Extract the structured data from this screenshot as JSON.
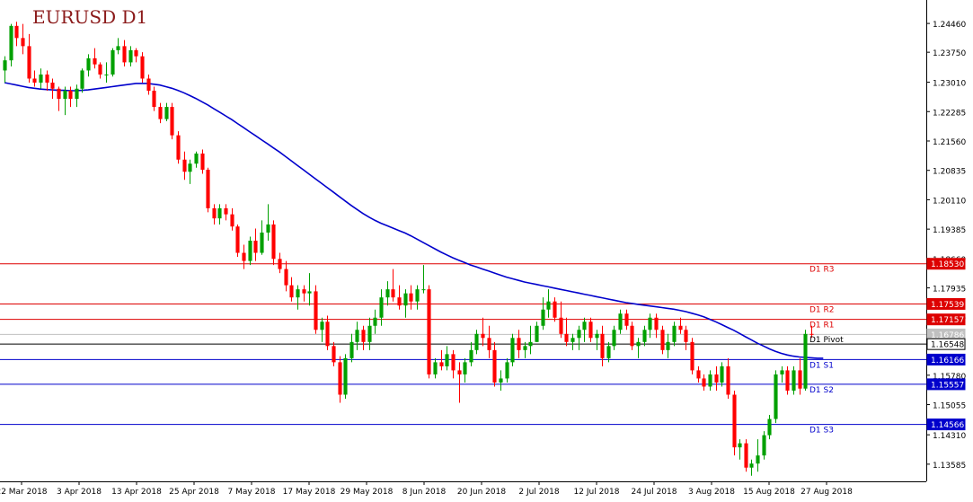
{
  "chart_data": {
    "type": "candlestick",
    "title": "EURUSD D1",
    "colors": {
      "bull": "#00a000",
      "bear": "#ff0000",
      "ma": "#0000cc",
      "resistance": "#dd0000",
      "support": "#0000cc",
      "pivot": "#000000",
      "current": "#c0c0c0",
      "axis": "#000000"
    },
    "y_axis": {
      "min": 1.1325,
      "max": 1.2495,
      "ticks": [
        "1.24460",
        "1.23750",
        "1.23010",
        "1.22285",
        "1.21560",
        "1.20835",
        "1.20110",
        "1.19385",
        "1.18660",
        "1.17935",
        "1.17210",
        "1.16495",
        "1.15780",
        "1.15055",
        "1.14310",
        "1.13585"
      ]
    },
    "x_labels": [
      "22 Mar 2018",
      "3 Apr 2018",
      "13 Apr 2018",
      "25 Apr 2018",
      "7 May 2018",
      "17 May 2018",
      "29 May 2018",
      "8 Jun 2018",
      "20 Jun 2018",
      "2 Jul 2018",
      "12 Jul 2018",
      "24 Jul 2018",
      "3 Aug 2018",
      "15 Aug 2018",
      "27 Aug 2018"
    ],
    "levels": [
      {
        "name": "D1 R3",
        "value": 1.1853,
        "badge": "1.18530",
        "kind": "resistance"
      },
      {
        "name": "D1 R2",
        "value": 1.17539,
        "badge": "1.17539",
        "kind": "resistance"
      },
      {
        "name": "D1 R1",
        "value": 1.17157,
        "badge": "1.17157",
        "kind": "resistance"
      },
      {
        "name": "D1 Pivot",
        "value": 1.16548,
        "badge": "1.16548",
        "kind": "pivot"
      },
      {
        "name": "D1 S1",
        "value": 1.16166,
        "badge": "1.16166",
        "kind": "support"
      },
      {
        "name": "D1 S2",
        "value": 1.15557,
        "badge": "1.15557",
        "kind": "support"
      },
      {
        "name": "D1 S3",
        "value": 1.14566,
        "badge": "1.14566",
        "kind": "support"
      }
    ],
    "current_price": {
      "value": 1.16786,
      "badge": "1.16786"
    },
    "ohlc": [
      [
        1.233,
        1.2365,
        1.23,
        1.2355
      ],
      [
        1.2355,
        1.2445,
        1.234,
        1.244
      ],
      [
        1.244,
        1.245,
        1.239,
        1.241
      ],
      [
        1.241,
        1.2445,
        1.237,
        1.239
      ],
      [
        1.239,
        1.242,
        1.23,
        1.231
      ],
      [
        1.231,
        1.233,
        1.229,
        1.23
      ],
      [
        1.23,
        1.2335,
        1.2285,
        1.232
      ],
      [
        1.232,
        1.233,
        1.228,
        1.23
      ],
      [
        1.23,
        1.231,
        1.226,
        1.2285
      ],
      [
        1.2285,
        1.229,
        1.223,
        1.226
      ],
      [
        1.226,
        1.229,
        1.222,
        1.228
      ],
      [
        1.228,
        1.229,
        1.224,
        1.226
      ],
      [
        1.226,
        1.2295,
        1.224,
        1.2285
      ],
      [
        1.2285,
        1.2335,
        1.2275,
        1.233
      ],
      [
        1.233,
        1.237,
        1.2315,
        1.236
      ],
      [
        1.236,
        1.2385,
        1.2335,
        1.2345
      ],
      [
        1.2345,
        1.235,
        1.231,
        1.232
      ],
      [
        1.232,
        1.235,
        1.23,
        1.232
      ],
      [
        1.232,
        1.2385,
        1.2315,
        1.238
      ],
      [
        1.238,
        1.241,
        1.237,
        1.239
      ],
      [
        1.239,
        1.2405,
        1.234,
        1.235
      ],
      [
        1.235,
        1.239,
        1.234,
        1.238
      ],
      [
        1.238,
        1.2385,
        1.235,
        1.2365
      ],
      [
        1.2365,
        1.2375,
        1.23,
        1.231
      ],
      [
        1.231,
        1.232,
        1.227,
        1.228
      ],
      [
        1.228,
        1.229,
        1.223,
        1.224
      ],
      [
        1.224,
        1.225,
        1.22,
        1.221
      ],
      [
        1.221,
        1.225,
        1.2205,
        1.224
      ],
      [
        1.224,
        1.225,
        1.216,
        1.217
      ],
      [
        1.217,
        1.218,
        1.21,
        1.211
      ],
      [
        1.211,
        1.213,
        1.206,
        1.208
      ],
      [
        1.208,
        1.211,
        1.205,
        1.21
      ],
      [
        1.21,
        1.213,
        1.209,
        1.2125
      ],
      [
        1.2125,
        1.2135,
        1.2075,
        1.2085
      ],
      [
        1.2085,
        1.209,
        1.198,
        1.199
      ],
      [
        1.199,
        1.2,
        1.195,
        1.1965
      ],
      [
        1.1965,
        1.2,
        1.195,
        1.199
      ],
      [
        1.199,
        1.2,
        1.196,
        1.1975
      ],
      [
        1.1975,
        1.199,
        1.1935,
        1.1945
      ],
      [
        1.1945,
        1.195,
        1.187,
        1.188
      ],
      [
        1.188,
        1.19,
        1.184,
        1.186
      ],
      [
        1.186,
        1.192,
        1.185,
        1.191
      ],
      [
        1.191,
        1.194,
        1.186,
        1.188
      ],
      [
        1.188,
        1.196,
        1.1875,
        1.193
      ],
      [
        1.193,
        1.2,
        1.191,
        1.195
      ],
      [
        1.195,
        1.196,
        1.185,
        1.1865
      ],
      [
        1.1865,
        1.188,
        1.183,
        1.184
      ],
      [
        1.184,
        1.186,
        1.1785,
        1.18
      ],
      [
        1.18,
        1.182,
        1.176,
        1.177
      ],
      [
        1.177,
        1.18,
        1.174,
        1.179
      ],
      [
        1.179,
        1.18,
        1.176,
        1.178
      ],
      [
        1.178,
        1.183,
        1.175,
        1.1785
      ],
      [
        1.1785,
        1.18,
        1.168,
        1.169
      ],
      [
        1.169,
        1.172,
        1.166,
        1.171
      ],
      [
        1.171,
        1.1725,
        1.164,
        1.165
      ],
      [
        1.165,
        1.166,
        1.16,
        1.161
      ],
      [
        1.161,
        1.1625,
        1.151,
        1.153
      ],
      [
        1.153,
        1.163,
        1.152,
        1.162
      ],
      [
        1.162,
        1.168,
        1.161,
        1.166
      ],
      [
        1.166,
        1.171,
        1.164,
        1.169
      ],
      [
        1.169,
        1.17,
        1.164,
        1.166
      ],
      [
        1.166,
        1.172,
        1.164,
        1.17
      ],
      [
        1.17,
        1.174,
        1.168,
        1.172
      ],
      [
        1.172,
        1.179,
        1.17,
        1.177
      ],
      [
        1.177,
        1.181,
        1.175,
        1.179
      ],
      [
        1.179,
        1.184,
        1.176,
        1.177
      ],
      [
        1.177,
        1.18,
        1.174,
        1.175
      ],
      [
        1.175,
        1.179,
        1.172,
        1.178
      ],
      [
        1.178,
        1.18,
        1.174,
        1.176
      ],
      [
        1.176,
        1.18,
        1.174,
        1.179
      ],
      [
        1.179,
        1.185,
        1.178,
        1.179
      ],
      [
        1.179,
        1.18,
        1.157,
        1.158
      ],
      [
        1.158,
        1.162,
        1.157,
        1.161
      ],
      [
        1.161,
        1.164,
        1.159,
        1.16
      ],
      [
        1.16,
        1.165,
        1.159,
        1.163
      ],
      [
        1.163,
        1.164,
        1.157,
        1.159
      ],
      [
        1.159,
        1.161,
        1.151,
        1.158
      ],
      [
        1.158,
        1.162,
        1.156,
        1.161
      ],
      [
        1.161,
        1.166,
        1.16,
        1.164
      ],
      [
        1.164,
        1.169,
        1.163,
        1.168
      ],
      [
        1.168,
        1.172,
        1.165,
        1.167
      ],
      [
        1.167,
        1.17,
        1.162,
        1.164
      ],
      [
        1.164,
        1.166,
        1.155,
        1.156
      ],
      [
        1.156,
        1.159,
        1.154,
        1.157
      ],
      [
        1.157,
        1.162,
        1.156,
        1.161
      ],
      [
        1.161,
        1.168,
        1.16,
        1.167
      ],
      [
        1.167,
        1.169,
        1.162,
        1.164
      ],
      [
        1.164,
        1.166,
        1.162,
        1.165
      ],
      [
        1.165,
        1.17,
        1.163,
        1.166
      ],
      [
        1.166,
        1.171,
        1.166,
        1.17
      ],
      [
        1.17,
        1.177,
        1.169,
        1.174
      ],
      [
        1.174,
        1.179,
        1.172,
        1.176
      ],
      [
        1.176,
        1.177,
        1.171,
        1.172
      ],
      [
        1.172,
        1.176,
        1.167,
        1.168
      ],
      [
        1.168,
        1.172,
        1.165,
        1.166
      ],
      [
        1.166,
        1.168,
        1.164,
        1.167
      ],
      [
        1.167,
        1.17,
        1.164,
        1.169
      ],
      [
        1.169,
        1.172,
        1.166,
        1.171
      ],
      [
        1.171,
        1.172,
        1.166,
        1.167
      ],
      [
        1.167,
        1.169,
        1.164,
        1.168
      ],
      [
        1.168,
        1.17,
        1.16,
        1.162
      ],
      [
        1.162,
        1.166,
        1.161,
        1.165
      ],
      [
        1.165,
        1.17,
        1.164,
        1.169
      ],
      [
        1.169,
        1.174,
        1.168,
        1.173
      ],
      [
        1.173,
        1.174,
        1.169,
        1.17
      ],
      [
        1.17,
        1.171,
        1.164,
        1.165
      ],
      [
        1.165,
        1.167,
        1.162,
        1.166
      ],
      [
        1.166,
        1.17,
        1.165,
        1.169
      ],
      [
        1.169,
        1.173,
        1.167,
        1.172
      ],
      [
        1.172,
        1.173,
        1.167,
        1.169
      ],
      [
        1.169,
        1.17,
        1.163,
        1.164
      ],
      [
        1.164,
        1.168,
        1.162,
        1.166
      ],
      [
        1.166,
        1.171,
        1.165,
        1.17
      ],
      [
        1.17,
        1.172,
        1.168,
        1.169
      ],
      [
        1.169,
        1.17,
        1.164,
        1.166
      ],
      [
        1.166,
        1.167,
        1.158,
        1.159
      ],
      [
        1.159,
        1.16,
        1.156,
        1.157
      ],
      [
        1.157,
        1.158,
        1.154,
        1.155
      ],
      [
        1.155,
        1.159,
        1.154,
        1.158
      ],
      [
        1.158,
        1.16,
        1.154,
        1.156
      ],
      [
        1.156,
        1.161,
        1.155,
        1.16
      ],
      [
        1.16,
        1.162,
        1.152,
        1.153
      ],
      [
        1.153,
        1.154,
        1.138,
        1.14
      ],
      [
        1.14,
        1.142,
        1.137,
        1.141
      ],
      [
        1.141,
        1.142,
        1.134,
        1.135
      ],
      [
        1.135,
        1.137,
        1.133,
        1.136
      ],
      [
        1.136,
        1.142,
        1.134,
        1.138
      ],
      [
        1.138,
        1.144,
        1.137,
        1.143
      ],
      [
        1.143,
        1.148,
        1.142,
        1.147
      ],
      [
        1.147,
        1.159,
        1.146,
        1.158
      ],
      [
        1.158,
        1.16,
        1.156,
        1.159
      ],
      [
        1.159,
        1.16,
        1.153,
        1.154
      ],
      [
        1.154,
        1.16,
        1.153,
        1.159
      ],
      [
        1.159,
        1.162,
        1.153,
        1.1545
      ],
      [
        1.1545,
        1.169,
        1.154,
        1.168
      ],
      [
        1.168,
        1.17,
        1.167,
        1.1679
      ]
    ],
    "ma": [
      1.23,
      1.2297,
      1.2294,
      1.2291,
      1.2288,
      1.2286,
      1.2284,
      1.2283,
      1.2282,
      1.2281,
      1.2281,
      1.228,
      1.228,
      1.2281,
      1.2282,
      1.2284,
      1.2286,
      1.2288,
      1.229,
      1.2292,
      1.2294,
      1.2296,
      1.2298,
      1.2298,
      1.2298,
      1.2296,
      1.2294,
      1.229,
      1.2286,
      1.2281,
      1.2275,
      1.2268,
      1.2261,
      1.2253,
      1.2245,
      1.2236,
      1.2227,
      1.2218,
      1.2209,
      1.2199,
      1.2189,
      1.2179,
      1.2169,
      1.2159,
      1.2149,
      1.2139,
      1.2129,
      1.2118,
      1.2107,
      1.2096,
      1.2085,
      1.2074,
      1.2063,
      1.2052,
      1.2041,
      1.203,
      1.2019,
      1.2008,
      1.1997,
      1.1987,
      1.1977,
      1.1968,
      1.196,
      1.1953,
      1.1947,
      1.1941,
      1.1935,
      1.1929,
      1.1922,
      1.1914,
      1.1906,
      1.1898,
      1.189,
      1.1882,
      1.1875,
      1.1868,
      1.1862,
      1.1856,
      1.185,
      1.1845,
      1.184,
      1.1835,
      1.183,
      1.1825,
      1.182,
      1.1816,
      1.1812,
      1.1808,
      1.1805,
      1.1802,
      1.1799,
      1.1796,
      1.1793,
      1.179,
      1.1787,
      1.1784,
      1.1781,
      1.1778,
      1.1775,
      1.1772,
      1.1769,
      1.1766,
      1.1763,
      1.176,
      1.1757,
      1.1755,
      1.1753,
      1.1751,
      1.1749,
      1.1747,
      1.1745,
      1.1743,
      1.1741,
      1.1738,
      1.1735,
      1.1731,
      1.1727,
      1.1722,
      1.1716,
      1.171,
      1.1703,
      1.1696,
      1.1689,
      1.1681,
      1.1673,
      1.1665,
      1.1657,
      1.165,
      1.1643,
      1.1637,
      1.1632,
      1.1628,
      1.1625,
      1.1623,
      1.1622,
      1.1621,
      1.162,
      1.162
    ]
  }
}
